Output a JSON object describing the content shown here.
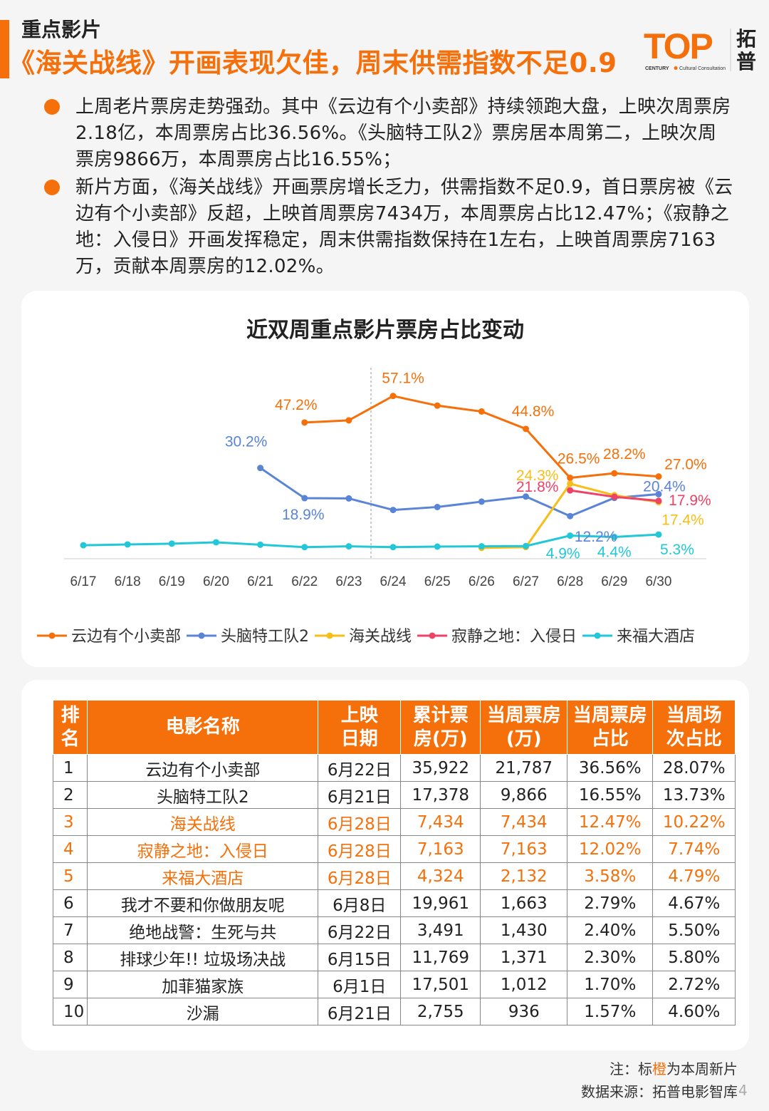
{
  "header": {
    "section": "重点影片",
    "title": "《海关战线》开画表现欠佳，周末供需指数不足0.9",
    "logo_text": "TOP",
    "logo_sub": "CENTURY",
    "logo_sub2": "Cultural Consultation",
    "logo_cn_1": "拓",
    "logo_cn_2": "普"
  },
  "bullets": [
    "上周老片票房走势强劲。其中《云边有个小卖部》持续领跑大盘，上映次周票房2.18亿，本周票房占比36.56%。《头脑特工队2》票房居本周第二，上映次周票房9866万，本周票房占比16.55%；",
    "新片方面，《海关战线》开画票房增长乏力，供需指数不足0.9，首日票房被《云边有个小卖部》反超，上映首周票房7434万，本周票房占比12.47%；《寂静之地：入侵日》开画发挥稳定，周末供需指数保持在1左右，上映首周票房7163万，贡献本周票房的12.02%。"
  ],
  "chart_data": {
    "type": "line",
    "title": "近双周重点影片票房占比变动",
    "x": [
      "6/17",
      "6/18",
      "6/19",
      "6/20",
      "6/21",
      "6/22",
      "6/23",
      "6/24",
      "6/25",
      "6/26",
      "6/27",
      "6/28",
      "6/29",
      "6/30"
    ],
    "ylim": [
      0,
      65
    ],
    "divider_after": "6/23",
    "series": [
      {
        "name": "云边有个小卖部",
        "color": "#f5700a",
        "values": [
          null,
          null,
          null,
          null,
          null,
          47.2,
          48.0,
          57.1,
          53.5,
          51.3,
          44.8,
          26.5,
          28.2,
          27.0
        ]
      },
      {
        "name": "头脑特工队2",
        "color": "#5a84d6",
        "values": [
          null,
          null,
          null,
          null,
          30.2,
          18.9,
          18.8,
          14.5,
          15.6,
          17.6,
          19.5,
          12.2,
          19.0,
          20.4
        ]
      },
      {
        "name": "海关战线",
        "color": "#f7be18",
        "values": [
          null,
          null,
          null,
          null,
          null,
          null,
          null,
          null,
          null,
          0.3,
          0.6,
          24.3,
          20.0,
          17.4
        ]
      },
      {
        "name": "寂静之地：入侵日",
        "color": "#ee4266",
        "values": [
          null,
          null,
          null,
          null,
          null,
          null,
          null,
          null,
          null,
          null,
          null,
          21.8,
          19.4,
          17.9
        ]
      },
      {
        "name": "来福大酒店",
        "color": "#22c7d8",
        "values": [
          1.3,
          1.6,
          1.9,
          2.4,
          1.5,
          0.6,
          0.9,
          0.6,
          0.8,
          0.9,
          1.0,
          4.9,
          4.4,
          5.3
        ]
      }
    ],
    "data_labels": [
      {
        "series": 0,
        "index": 5,
        "text": "47.2%"
      },
      {
        "series": 0,
        "index": 7,
        "text": "57.1%"
      },
      {
        "series": 0,
        "index": 10,
        "text": "44.8%"
      },
      {
        "series": 0,
        "index": 11,
        "text": "26.5%"
      },
      {
        "series": 0,
        "index": 12,
        "text": "28.2%"
      },
      {
        "series": 0,
        "index": 13,
        "text": "27.0%"
      },
      {
        "series": 1,
        "index": 4,
        "text": "30.2%"
      },
      {
        "series": 1,
        "index": 5,
        "text": "18.9%"
      },
      {
        "series": 1,
        "index": 11,
        "text": "12.2%"
      },
      {
        "series": 1,
        "index": 13,
        "text": "20.4%"
      },
      {
        "series": 2,
        "index": 11,
        "text": "24.3%"
      },
      {
        "series": 2,
        "index": 13,
        "text": "17.4%"
      },
      {
        "series": 3,
        "index": 11,
        "text": "21.8%"
      },
      {
        "series": 3,
        "index": 13,
        "text": "17.9%"
      },
      {
        "series": 4,
        "index": 11,
        "text": "4.9%"
      },
      {
        "series": 4,
        "index": 12,
        "text": "4.4%"
      },
      {
        "series": 4,
        "index": 13,
        "text": "5.3%"
      }
    ],
    "legend": "bottom"
  },
  "table": {
    "headers": [
      [
        "排",
        "名"
      ],
      [
        "电影名称"
      ],
      [
        "上映",
        "日期"
      ],
      [
        "累计票",
        "房(万)"
      ],
      [
        "当周票房",
        "(万)"
      ],
      [
        "当周票房",
        "占比"
      ],
      [
        "当周场",
        "次占比"
      ]
    ],
    "rows": [
      {
        "new": false,
        "cells": [
          "1",
          "云边有个小卖部",
          "6月22日",
          "35,922",
          "21,787",
          "36.56%",
          "28.07%"
        ]
      },
      {
        "new": false,
        "cells": [
          "2",
          "头脑特工队2",
          "6月21日",
          "17,378",
          "9,866",
          "16.55%",
          "13.73%"
        ]
      },
      {
        "new": true,
        "cells": [
          "3",
          "海关战线",
          "6月28日",
          "7,434",
          "7,434",
          "12.47%",
          "10.22%"
        ]
      },
      {
        "new": true,
        "cells": [
          "4",
          "寂静之地：入侵日",
          "6月28日",
          "7,163",
          "7,163",
          "12.02%",
          "7.74%"
        ]
      },
      {
        "new": true,
        "cells": [
          "5",
          "来福大酒店",
          "6月28日",
          "4,324",
          "2,132",
          "3.58%",
          "4.79%"
        ]
      },
      {
        "new": false,
        "cells": [
          "6",
          "我才不要和你做朋友呢",
          "6月8日",
          "19,961",
          "1,663",
          "2.79%",
          "4.67%"
        ]
      },
      {
        "new": false,
        "cells": [
          "7",
          "绝地战警：生死与共",
          "6月22日",
          "3,491",
          "1,430",
          "2.40%",
          "5.50%"
        ]
      },
      {
        "new": false,
        "cells": [
          "8",
          "排球少年!! 垃圾场决战",
          "6月15日",
          "11,769",
          "1,371",
          "2.30%",
          "5.80%"
        ]
      },
      {
        "new": false,
        "cells": [
          "9",
          "加菲猫家族",
          "6月1日",
          "17,501",
          "1,012",
          "1.70%",
          "2.72%"
        ]
      },
      {
        "new": false,
        "cells": [
          "10",
          "沙漏",
          "6月21日",
          "2,755",
          "936",
          "1.57%",
          "4.60%"
        ]
      }
    ]
  },
  "notes": {
    "note_prefix": "注：标",
    "note_highlight": "橙",
    "note_suffix": "为本周新片",
    "source": "数据来源：拓普电影智库",
    "page": "4"
  }
}
